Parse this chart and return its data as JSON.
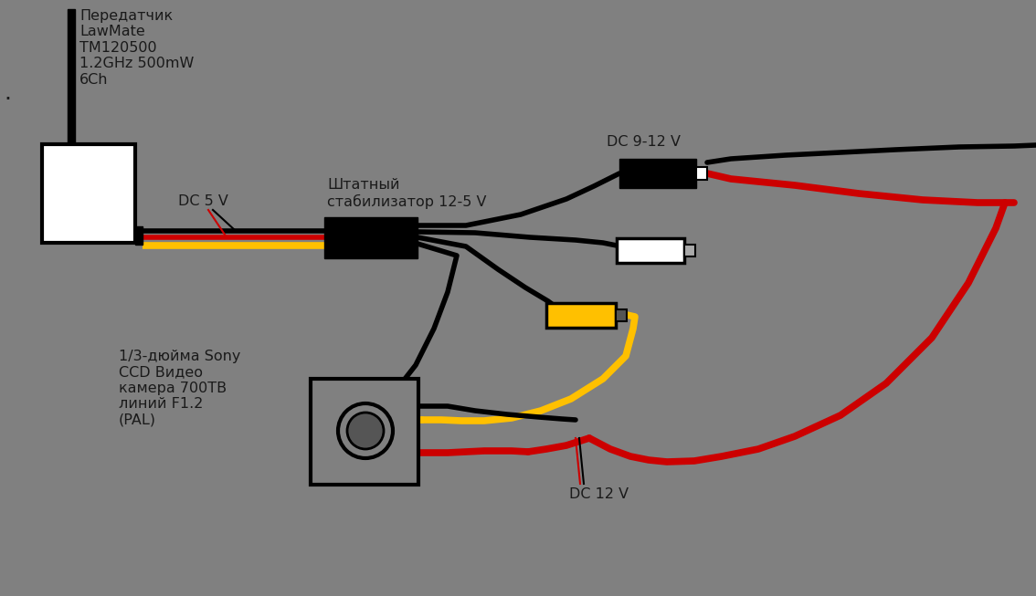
{
  "bg_color": "#808080",
  "black": "#000000",
  "red": "#cc0000",
  "yellow": "#ffc000",
  "white": "#ffffff",
  "dark_gray": "#555555",
  "light_gray": "#aaaaaa",
  "text_color": "#1a1a1a",
  "text_transmitter": "Передатчик\nLawMate\nTM120500\n1.2GHz 500mW\n6Ch",
  "text_stabilizer": "Штатный\nстабилизатор 12-5 V",
  "text_camera": "1/3-дюйма Sony\nCCD Видео\nкамера 700ТВ\nлиний F1.2\n(PAL)",
  "text_dc5v": "DC 5 V",
  "text_dc912v": "DC 9-12 V",
  "text_dc12v": "DC 12 V",
  "figsize": [
    11.34,
    6.53
  ],
  "dpi": 100
}
